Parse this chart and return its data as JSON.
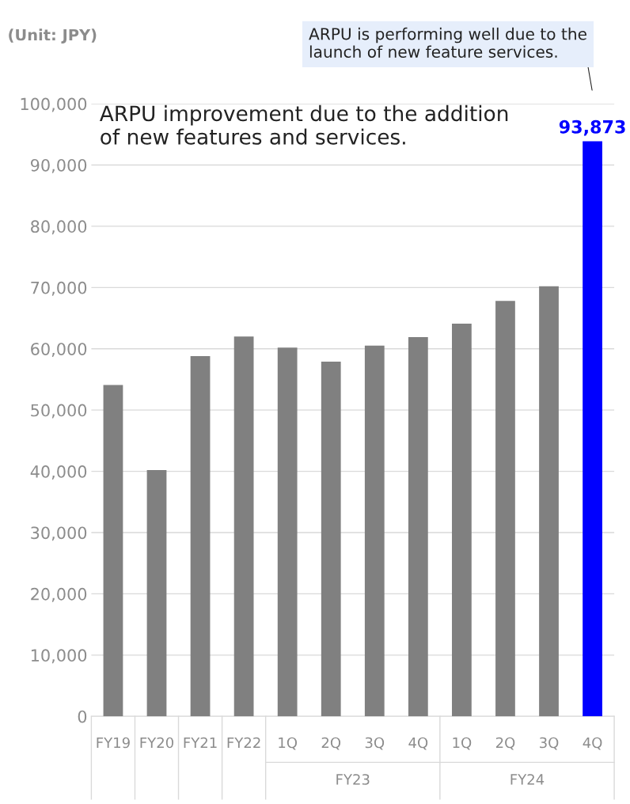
{
  "chart_data": {
    "type": "bar",
    "categories": [
      "FY19",
      "FY20",
      "FY21",
      "FY22",
      "1Q",
      "2Q",
      "3Q",
      "4Q",
      "1Q",
      "2Q",
      "3Q",
      "4Q"
    ],
    "values": [
      54100,
      40200,
      58800,
      62000,
      60200,
      57900,
      60500,
      61900,
      64100,
      67800,
      70200,
      93873
    ],
    "colors": [
      "#808080",
      "#808080",
      "#808080",
      "#808080",
      "#808080",
      "#808080",
      "#808080",
      "#808080",
      "#808080",
      "#808080",
      "#808080",
      "#0000ff"
    ],
    "value_labels": [
      null,
      null,
      null,
      null,
      null,
      null,
      null,
      null,
      null,
      null,
      null,
      "93,873"
    ],
    "ylim": [
      0,
      100000
    ],
    "yticks": [
      {
        "value": 0,
        "label": "0"
      },
      {
        "value": 10000,
        "label": "10,000"
      },
      {
        "value": 20000,
        "label": "20,000"
      },
      {
        "value": 30000,
        "label": "30,000"
      },
      {
        "value": 40000,
        "label": "40,000"
      },
      {
        "value": 50000,
        "label": "50,000"
      },
      {
        "value": 60000,
        "label": "60,000"
      },
      {
        "value": 70000,
        "label": "70,000"
      },
      {
        "value": 80000,
        "label": "80,000"
      },
      {
        "value": 90000,
        "label": "90,000"
      },
      {
        "value": 100000,
        "label": "100,000"
      }
    ],
    "grid": "y",
    "annotations": [
      "(Unit: JPY)",
      "ARPU improvement due to the addition of new features and services.",
      "ARPU is performing well due to the launch of new feature services.",
      "FY23",
      "FY24"
    ]
  }
}
